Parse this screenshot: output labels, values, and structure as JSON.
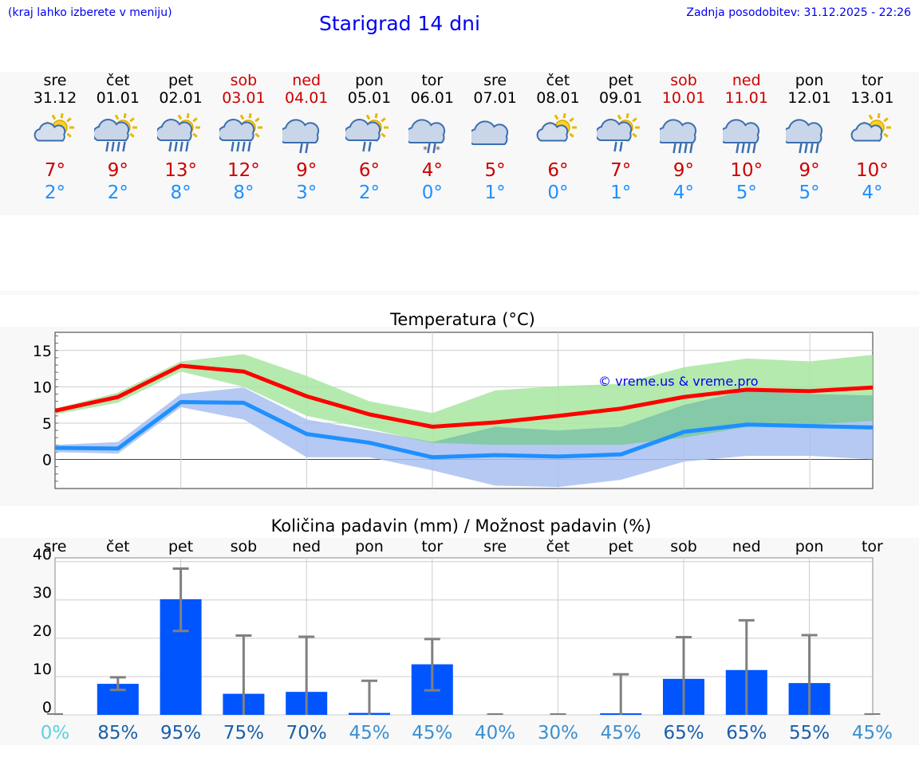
{
  "header": {
    "menu_hint": "(kraj lahko izberete v meniju)",
    "title": "Starigrad 14 dni",
    "last_update": "Zadnja posodobitev: 31.12.2025 - 22:26"
  },
  "colors": {
    "title": "#0000ee",
    "weekend": "#cc0000",
    "tmax": "#cc0000",
    "tmin": "#1e90ff",
    "max_line": "#ff0000",
    "min_line": "#1e90ff",
    "max_band": "#a8e6a0",
    "min_band": "#a8c0f0",
    "bar": "#0055ff"
  },
  "days": [
    {
      "name": "sre",
      "date": "31.12",
      "weekend": false,
      "icon": "sun-cloud-icon",
      "tmax": "7°",
      "tmin": "2°"
    },
    {
      "name": "čet",
      "date": "01.01",
      "weekend": false,
      "icon": "sun-cloud-rain-icon",
      "tmax": "9°",
      "tmin": "2°"
    },
    {
      "name": "pet",
      "date": "02.01",
      "weekend": false,
      "icon": "sun-cloud-rain-icon",
      "tmax": "13°",
      "tmin": "8°"
    },
    {
      "name": "sob",
      "date": "03.01",
      "weekend": true,
      "icon": "sun-cloud-rain-icon",
      "tmax": "12°",
      "tmin": "8°"
    },
    {
      "name": "ned",
      "date": "04.01",
      "weekend": true,
      "icon": "cloud-light-rain-icon",
      "tmax": "9°",
      "tmin": "3°"
    },
    {
      "name": "pon",
      "date": "05.01",
      "weekend": false,
      "icon": "sun-cloud-light-rain-icon",
      "tmax": "6°",
      "tmin": "2°"
    },
    {
      "name": "tor",
      "date": "06.01",
      "weekend": false,
      "icon": "cloud-sleet-icon",
      "tmax": "4°",
      "tmin": "0°"
    },
    {
      "name": "sre",
      "date": "07.01",
      "weekend": false,
      "icon": "cloudy-icon",
      "tmax": "5°",
      "tmin": "1°"
    },
    {
      "name": "čet",
      "date": "08.01",
      "weekend": false,
      "icon": "sun-cloud-icon",
      "tmax": "6°",
      "tmin": "0°"
    },
    {
      "name": "pet",
      "date": "09.01",
      "weekend": false,
      "icon": "sun-cloud-light-rain-icon",
      "tmax": "7°",
      "tmin": "1°"
    },
    {
      "name": "sob",
      "date": "10.01",
      "weekend": true,
      "icon": "cloud-rain-icon",
      "tmax": "9°",
      "tmin": "4°"
    },
    {
      "name": "ned",
      "date": "11.01",
      "weekend": true,
      "icon": "cloud-rain-icon",
      "tmax": "10°",
      "tmin": "5°"
    },
    {
      "name": "pon",
      "date": "12.01",
      "weekend": false,
      "icon": "cloud-rain-icon",
      "tmax": "9°",
      "tmin": "5°"
    },
    {
      "name": "tor",
      "date": "13.01",
      "weekend": false,
      "icon": "sun-cloud-icon",
      "tmax": "10°",
      "tmin": "4°"
    }
  ],
  "chart_data": [
    {
      "type": "line",
      "title": "Temperatura (°C)",
      "watermark": "© vreme.us & vreme.pro",
      "xlabel": "",
      "ylabel": "",
      "ylim": [
        -4,
        17.5
      ],
      "yticks": [
        0,
        5,
        10,
        15
      ],
      "grid": true,
      "series": [
        {
          "name": "max",
          "values": [
            6.7,
            8.6,
            12.9,
            12.1,
            8.7,
            6.2,
            4.5,
            5.1,
            6.0,
            7.0,
            8.6,
            9.6,
            9.4,
            9.9
          ]
        },
        {
          "name": "min",
          "values": [
            1.6,
            1.5,
            7.9,
            7.8,
            3.5,
            2.3,
            0.3,
            0.6,
            0.4,
            0.7,
            3.8,
            4.8,
            4.6,
            4.4
          ]
        }
      ],
      "bands": [
        {
          "name": "max_range",
          "upper": [
            7.0,
            9.2,
            13.5,
            14.5,
            11.5,
            8.0,
            6.4,
            9.5,
            10.1,
            10.4,
            12.7,
            13.9,
            13.5,
            14.4
          ],
          "lower": [
            6.2,
            7.8,
            12.1,
            10.0,
            6.0,
            4.2,
            2.3,
            2.0,
            2.0,
            2.0,
            3.0,
            4.5,
            4.8,
            5.3
          ]
        },
        {
          "name": "min_range",
          "upper": [
            2.0,
            2.4,
            9.0,
            9.9,
            5.5,
            4.0,
            2.4,
            4.5,
            4.0,
            4.5,
            7.5,
            9.5,
            9.0,
            8.8
          ]
        },
        {
          "name": "min_range_lower",
          "lower": [
            1.0,
            0.8,
            7.2,
            5.5,
            0.3,
            0.3,
            -1.5,
            -3.6,
            -3.8,
            -2.8,
            -0.3,
            0.5,
            0.5,
            0.0
          ]
        }
      ]
    },
    {
      "type": "bar",
      "title": "Količina padavin (mm) / Možnost padavin (%)",
      "categories": [
        "sre",
        "čet",
        "pet",
        "sob",
        "ned",
        "pon",
        "tor",
        "sre",
        "čet",
        "pet",
        "sob",
        "ned",
        "pon",
        "tor"
      ],
      "values": [
        0,
        8.1,
        30.2,
        5.5,
        6.0,
        0.5,
        13.2,
        0,
        0,
        0.4,
        9.4,
        11.7,
        8.3,
        0
      ],
      "error_low": [
        0,
        6.5,
        21.9,
        0,
        0,
        0,
        6.4,
        0,
        0,
        0,
        0,
        0,
        0,
        0
      ],
      "error_high": [
        0,
        9.8,
        38.2,
        20.7,
        20.4,
        8.9,
        19.8,
        0,
        0,
        10.6,
        20.3,
        24.7,
        20.8,
        0
      ],
      "probabilities": [
        "0%",
        "85%",
        "95%",
        "75%",
        "70%",
        "45%",
        "45%",
        "40%",
        "30%",
        "45%",
        "65%",
        "65%",
        "55%",
        "45%"
      ],
      "ylim": [
        0,
        41
      ],
      "yticks": [
        0,
        10,
        20,
        30,
        40
      ],
      "grid": true
    }
  ]
}
